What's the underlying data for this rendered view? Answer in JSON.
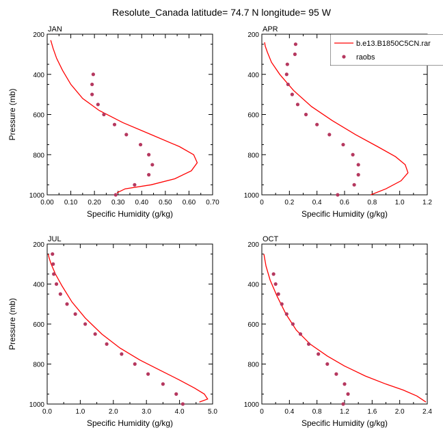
{
  "figure": {
    "title": "Resolute_Canada  latitude= 74.7 N longitude= 95 W"
  },
  "legend": {
    "placement": "top-right of APR panel",
    "entries": [
      {
        "label": "b.e13.B1850C5CN.rar",
        "style": "line",
        "color": "#ff0000"
      },
      {
        "label": "raobs",
        "style": "marker",
        "color": "#b5385f"
      }
    ]
  },
  "colors": {
    "model": "#ff0000",
    "raobs": "#b5385f",
    "axis": "#000000"
  },
  "chart_data": [
    {
      "type": "line",
      "panel": "JAN",
      "xlabel": "Specific Humidity (g/kg)",
      "ylabel": "Pressure (mb)",
      "xlim": [
        0,
        0.7
      ],
      "ylim": [
        1000,
        200
      ],
      "xticks": [
        "0.00",
        "0.10",
        "0.20",
        "0.30",
        "0.40",
        "0.50",
        "0.60",
        "0.70"
      ],
      "yticks": [
        "200",
        "400",
        "600",
        "800",
        "1000"
      ],
      "series": [
        {
          "name": "b.e13.B1850C5CN.rar",
          "kind": "line",
          "x": [
            0.295,
            0.33,
            0.44,
            0.54,
            0.61,
            0.635,
            0.62,
            0.56,
            0.44,
            0.32,
            0.22,
            0.15,
            0.1,
            0.065,
            0.04,
            0.025,
            0.015
          ],
          "y": [
            990,
            970,
            950,
            920,
            880,
            840,
            800,
            760,
            700,
            640,
            580,
            520,
            450,
            380,
            320,
            270,
            230
          ]
        },
        {
          "name": "raobs",
          "kind": "marker",
          "x": [
            0.29,
            0.37,
            0.43,
            0.445,
            0.43,
            0.395,
            0.335,
            0.285,
            0.24,
            0.215,
            0.19,
            0.19,
            0.195
          ],
          "y": [
            1000,
            950,
            900,
            850,
            800,
            750,
            700,
            650,
            600,
            550,
            500,
            450,
            400
          ]
        }
      ]
    },
    {
      "type": "line",
      "panel": "APR",
      "xlabel": "Specific Humidity (g/kg)",
      "ylabel": "",
      "xlim": [
        0,
        1.2
      ],
      "ylim": [
        1000,
        200
      ],
      "xticks": [
        "0",
        "0.2",
        "0.4",
        "0.6",
        "0.8",
        "1.0",
        "1.2"
      ],
      "yticks": [
        "200",
        "400",
        "600",
        "800",
        "1000"
      ],
      "series": [
        {
          "name": "b.e13.B1850C5CN.rar",
          "kind": "line",
          "x": [
            0.79,
            0.9,
            1.01,
            1.06,
            1.04,
            0.97,
            0.84,
            0.68,
            0.51,
            0.36,
            0.23,
            0.13,
            0.07,
            0.04,
            0.025,
            0.02
          ],
          "y": [
            1000,
            970,
            930,
            890,
            850,
            810,
            760,
            700,
            630,
            560,
            480,
            400,
            340,
            290,
            260,
            240
          ]
        },
        {
          "name": "raobs",
          "kind": "marker",
          "x": [
            0.55,
            0.67,
            0.7,
            0.7,
            0.66,
            0.59,
            0.49,
            0.4,
            0.32,
            0.26,
            0.22,
            0.19,
            0.18,
            0.185,
            0.24,
            0.245
          ],
          "y": [
            1000,
            950,
            900,
            850,
            800,
            750,
            700,
            650,
            600,
            550,
            500,
            450,
            400,
            350,
            300,
            250
          ]
        }
      ]
    },
    {
      "type": "line",
      "panel": "JUL",
      "xlabel": "Specific Humidity (g/kg)",
      "ylabel": "Pressure (mb)",
      "xlim": [
        0,
        5.0
      ],
      "ylim": [
        1000,
        200
      ],
      "xticks": [
        "0.0",
        "1.0",
        "2.0",
        "3.0",
        "4.0",
        "5.0"
      ],
      "yticks": [
        "200",
        "400",
        "600",
        "800",
        "1000"
      ],
      "series": [
        {
          "name": "b.e13.B1850C5CN.rar",
          "kind": "line",
          "x": [
            4.6,
            4.85,
            4.75,
            4.45,
            4.0,
            3.4,
            2.8,
            2.2,
            1.65,
            1.15,
            0.75,
            0.45,
            0.25,
            0.12,
            0.06,
            0.03
          ],
          "y": [
            990,
            975,
            950,
            920,
            880,
            830,
            780,
            720,
            650,
            570,
            490,
            410,
            350,
            300,
            270,
            250
          ]
        },
        {
          "name": "raobs",
          "kind": "marker",
          "x": [
            4.1,
            3.9,
            3.5,
            3.05,
            2.65,
            2.25,
            1.8,
            1.45,
            1.15,
            0.85,
            0.6,
            0.4,
            0.28,
            0.2,
            0.18,
            0.16
          ],
          "y": [
            1000,
            950,
            900,
            850,
            800,
            750,
            700,
            650,
            600,
            550,
            500,
            450,
            400,
            350,
            300,
            250
          ]
        }
      ]
    },
    {
      "type": "line",
      "panel": "OCT",
      "xlabel": "Specific Humidity (g/kg)",
      "ylabel": "",
      "xlim": [
        0,
        2.4
      ],
      "ylim": [
        1000,
        200
      ],
      "xticks": [
        "0",
        "0.4",
        "0.8",
        "1.2",
        "1.6",
        "2.0",
        "2.4"
      ],
      "yticks": [
        "200",
        "400",
        "600",
        "800",
        "1000"
      ],
      "series": [
        {
          "name": "b.e13.B1850C5CN.rar",
          "kind": "line",
          "x": [
            2.38,
            2.25,
            2.05,
            1.8,
            1.5,
            1.2,
            0.95,
            0.7,
            0.5,
            0.35,
            0.22,
            0.12,
            0.06,
            0.03
          ],
          "y": [
            990,
            960,
            930,
            900,
            860,
            810,
            760,
            700,
            630,
            550,
            460,
            380,
            310,
            250
          ]
        },
        {
          "name": "raobs",
          "kind": "marker",
          "x": [
            1.18,
            1.25,
            1.2,
            1.08,
            0.95,
            0.82,
            0.68,
            0.56,
            0.45,
            0.36,
            0.29,
            0.24,
            0.2,
            0.17
          ],
          "y": [
            1000,
            950,
            900,
            850,
            800,
            750,
            700,
            650,
            600,
            550,
            500,
            450,
            400,
            350
          ]
        }
      ]
    }
  ]
}
